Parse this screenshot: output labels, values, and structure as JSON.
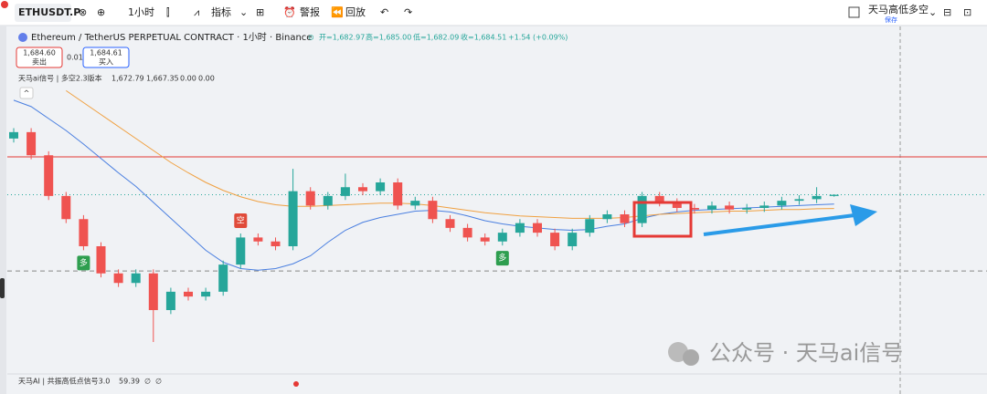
{
  "ui": {
    "toolbar": {
      "symbol": "ETHUSDT.P",
      "interval": "1小时",
      "indicators": "指标",
      "alert": "警报",
      "replay": "回放",
      "layout_name": "天马高低多空",
      "save": "保存"
    },
    "legend": {
      "instrument": "Ethereum / TetherUS PERPETUAL CONTRACT · 1小时 · Binance",
      "open": "开=1,682.97",
      "high": "高=1,685.00",
      "low": "低=1,682.09",
      "close": "收=1,684.51",
      "change": "+1.54 (+0.09%)"
    },
    "trade": {
      "sell_price": "1,684.60",
      "sell": "卖出",
      "qty": "0.01",
      "buy_price": "1,684.61",
      "buy": "买入"
    },
    "indicator": {
      "name": "天马ai信号 | 多空2.3版本",
      "v1": "1,672.79",
      "v2": "1,667.35",
      "v3": "0.00",
      "v4": "0.00"
    },
    "sub_indicator": {
      "name": "天马AI | 共振高低点信号3.0",
      "value": "59.39",
      "s1": "∅",
      "s2": "∅"
    },
    "watermark": "公众号 · 天马ai信号"
  },
  "chart_data": {
    "type": "candlestick",
    "ylim": [
      1460,
      1820
    ],
    "open": [
      1755,
      1763,
      1734,
      1683,
      1654,
      1620,
      1586,
      1574,
      1586,
      1540,
      1563,
      1557,
      1563,
      1597,
      1631,
      1626,
      1620,
      1689,
      1671,
      1683,
      1694,
      1689,
      1700,
      1671,
      1677,
      1654,
      1643,
      1631,
      1626,
      1637,
      1649,
      1637,
      1620,
      1637,
      1654,
      1660,
      1649,
      1683,
      1675,
      1668,
      1666,
      1671,
      1666,
      1668,
      1671,
      1677,
      1679,
      1682.97
    ],
    "high": [
      1768,
      1768,
      1739,
      1688,
      1659,
      1625,
      1591,
      1591,
      1591,
      1568,
      1568,
      1568,
      1602,
      1636,
      1636,
      1631,
      1717,
      1694,
      1688,
      1711,
      1699,
      1705,
      1705,
      1682,
      1682,
      1659,
      1648,
      1636,
      1642,
      1654,
      1654,
      1642,
      1642,
      1659,
      1665,
      1665,
      1688,
      1688,
      1680,
      1673,
      1676,
      1676,
      1673,
      1676,
      1682,
      1684,
      1694,
      1685
    ],
    "low": [
      1750,
      1729,
      1678,
      1649,
      1615,
      1581,
      1569,
      1569,
      1500,
      1535,
      1552,
      1552,
      1558,
      1592,
      1621,
      1615,
      1615,
      1666,
      1666,
      1678,
      1684,
      1684,
      1666,
      1666,
      1649,
      1638,
      1626,
      1621,
      1621,
      1632,
      1632,
      1615,
      1615,
      1632,
      1649,
      1644,
      1644,
      1670,
      1663,
      1661,
      1661,
      1661,
      1661,
      1663,
      1666,
      1672,
      1674,
      1682.09
    ],
    "close": [
      1763,
      1734,
      1683,
      1654,
      1620,
      1586,
      1574,
      1586,
      1540,
      1563,
      1557,
      1563,
      1597,
      1631,
      1626,
      1620,
      1689,
      1671,
      1683,
      1694,
      1689,
      1700,
      1671,
      1677,
      1654,
      1643,
      1631,
      1626,
      1637,
      1649,
      1637,
      1620,
      1637,
      1654,
      1660,
      1649,
      1683,
      1675,
      1668,
      1666,
      1671,
      1666,
      1668,
      1671,
      1677,
      1679,
      1683,
      1684.51
    ],
    "up_color": "#26a69a",
    "down_color": "#ef5350",
    "series": [
      {
        "color": "#4a7fe0",
        "values": [
          1803,
          1795,
          1780,
          1765,
          1748,
          1730,
          1712,
          1695,
          1675,
          1655,
          1635,
          1615,
          1600,
          1592,
          1590,
          1592,
          1598,
          1608,
          1625,
          1640,
          1650,
          1656,
          1660,
          1664,
          1665,
          1663,
          1658,
          1652,
          1648,
          1645,
          1643,
          1641,
          1640,
          1641,
          1645,
          1648,
          1655,
          1660,
          1663,
          1665,
          1666,
          1667,
          1668,
          1669,
          1670,
          1671,
          1672,
          1672.79
        ]
      },
      {
        "color": "#f0a040",
        "values": [
          null,
          null,
          null,
          1815,
          1800,
          1785,
          1770,
          1755,
          1740,
          1725,
          1712,
          1700,
          1690,
          1682,
          1676,
          1672,
          1670,
          1670,
          1671,
          1672,
          1673,
          1674,
          1674,
          1673,
          1671,
          1668,
          1665,
          1662,
          1660,
          1658,
          1657,
          1656,
          1655,
          1655,
          1655,
          1656,
          1658,
          1660,
          1661,
          1662,
          1663,
          1664,
          1664,
          1665,
          1666,
          1666,
          1667,
          1667.35
        ]
      }
    ],
    "levels": [
      {
        "value": 1732,
        "color": "#e53935",
        "style": "solid"
      },
      {
        "value": 1589,
        "color": "#888888",
        "style": "dashed"
      },
      {
        "value": 1684.51,
        "color": "#26a69a",
        "style": "dotted"
      }
    ],
    "signals": [
      {
        "label": "多",
        "candle": 4,
        "side": "below",
        "color": "#2e9e4f"
      },
      {
        "label": "空",
        "candle": 13,
        "side": "above",
        "color": "#e04b3a"
      },
      {
        "label": "多",
        "candle": 28,
        "side": "below",
        "color": "#2e9e4f"
      }
    ]
  }
}
